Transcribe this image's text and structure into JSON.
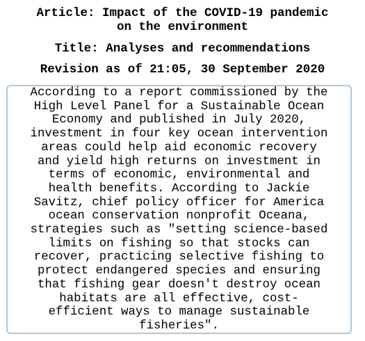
{
  "header": {
    "article_line1": "Article: Impact of the COVID-19 pandemic",
    "article_line2": "on the environment",
    "title": "Title: Analyses and recommendations",
    "revision": "Revision as of 21:05, 30 September 2020"
  },
  "content": {
    "text": "According to a report commissioned by the\nHigh Level Panel for a Sustainable Ocean\nEconomy and published in July 2020,\ninvestment in four key ocean intervention\nareas could help aid economic recovery\nand yield high returns on investment in\nterms of economic, environmental and\nhealth benefits. According to Jackie\nSavitz, chief policy officer for America\nocean conservation nonprofit Oceana,\nstrategies such as \"setting science-based\nlimits on fishing so that stocks can\nrecover, practicing selective fishing to\nprotect endangered species and ensuring\nthat fishing gear doesn't destroy ocean\nhabitats are all effective, cost-\nefficient ways to manage sustainable\nfisheries\"."
  },
  "colors": {
    "box_border": "#a8c8e8",
    "text": "#000000",
    "background": "#ffffff"
  }
}
